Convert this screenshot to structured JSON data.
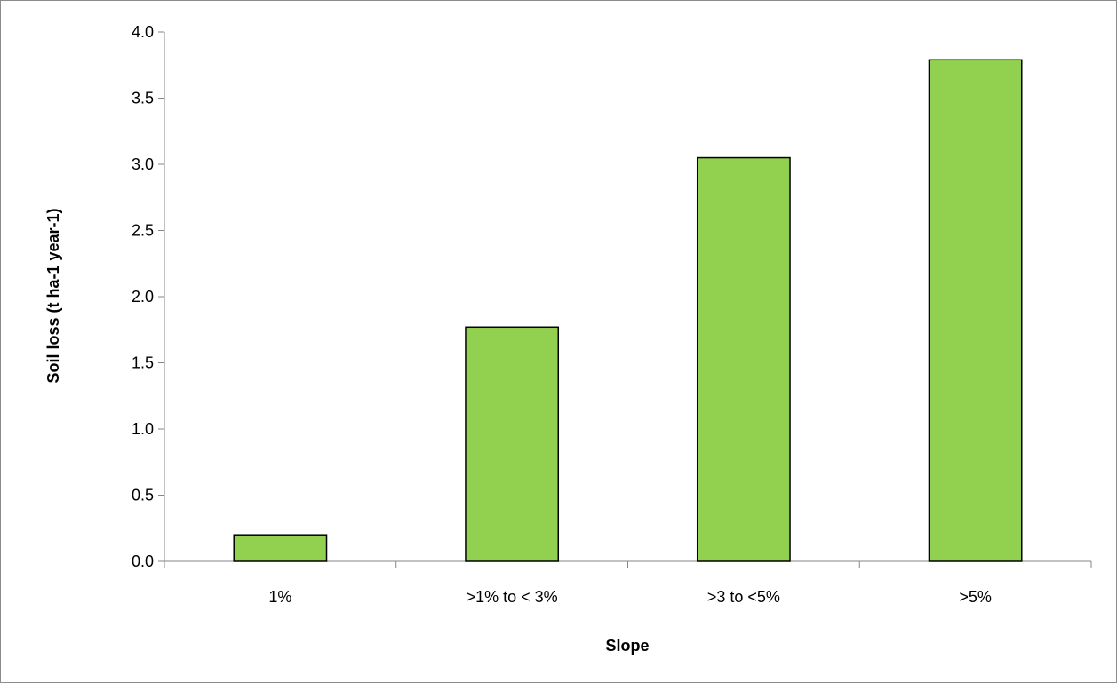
{
  "chart_data": {
    "type": "bar",
    "categories": [
      "1%",
      ">1% to < 3%",
      ">3 to <5%",
      ">5%"
    ],
    "values": [
      0.2,
      1.77,
      3.05,
      3.79
    ],
    "xlabel": "Slope",
    "ylabel": "Soil loss (t ha-1 year-1)",
    "ylim": [
      0,
      4.0
    ],
    "yticks": [
      "0.0",
      "0.5",
      "1.0",
      "1.5",
      "2.0",
      "2.5",
      "3.0",
      "3.5",
      "4.0"
    ],
    "grid": false,
    "legend": "none",
    "bar_color": "#92d050",
    "bar_edge_color": "#000000"
  }
}
